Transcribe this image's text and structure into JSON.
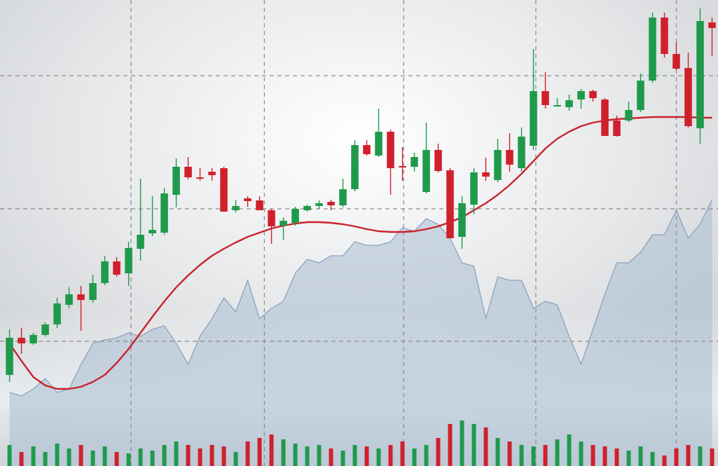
{
  "chart_data": {
    "type": "candlestick",
    "x": [
      0,
      1,
      2,
      3,
      4,
      5,
      6,
      7,
      8,
      9,
      10,
      11,
      12,
      13,
      14,
      15,
      16,
      17,
      18,
      19,
      20,
      21,
      22,
      23,
      24,
      25,
      26,
      27,
      28,
      29,
      30,
      31,
      32,
      33,
      34,
      35,
      36,
      37,
      38,
      39,
      40,
      41,
      42,
      43,
      44,
      45,
      46,
      47,
      48,
      49,
      50,
      51,
      52,
      53,
      54,
      55,
      56,
      57,
      58,
      59
    ],
    "open": [
      130,
      183,
      175,
      187,
      202,
      230,
      245,
      237,
      261,
      292,
      275,
      310,
      332,
      333,
      387,
      427,
      412,
      420,
      425,
      365,
      382,
      379,
      365,
      343,
      347,
      365,
      371,
      377,
      372,
      395,
      458,
      443,
      477,
      428,
      427,
      391,
      451,
      422,
      327,
      373,
      419,
      408,
      451,
      425,
      457,
      535,
      515,
      512,
      523,
      535,
      523,
      493,
      493,
      508,
      550,
      640,
      588,
      568,
      482,
      633
    ],
    "high": [
      195,
      197,
      190,
      205,
      240,
      255,
      257,
      273,
      300,
      298,
      320,
      410,
      385,
      397,
      439,
      441,
      425,
      425,
      427,
      380,
      385,
      385,
      367,
      355,
      370,
      373,
      379,
      380,
      410,
      465,
      465,
      510,
      480,
      455,
      447,
      490,
      460,
      425,
      385,
      425,
      440,
      467,
      475,
      483,
      595,
      562,
      525,
      530,
      538,
      537,
      525,
      500,
      520,
      560,
      647,
      647,
      605,
      590,
      653,
      640
    ],
    "low": [
      120,
      160,
      173,
      185,
      197,
      225,
      193,
      233,
      258,
      270,
      257,
      293,
      328,
      330,
      369,
      409,
      407,
      407,
      363,
      362,
      370,
      365,
      317,
      323,
      343,
      363,
      367,
      365,
      369,
      392,
      443,
      441,
      387,
      407,
      420,
      389,
      419,
      325,
      310,
      359,
      407,
      405,
      420,
      420,
      451,
      510,
      513,
      507,
      510,
      520,
      471,
      470,
      491,
      505,
      547,
      583,
      565,
      483,
      460,
      585
    ],
    "close": [
      183,
      175,
      187,
      202,
      232,
      245,
      237,
      261,
      292,
      273,
      311,
      330,
      337,
      389,
      427,
      412,
      410,
      415,
      363,
      371,
      378,
      365,
      342,
      350,
      367,
      371,
      375,
      372,
      395,
      458,
      445,
      477,
      425,
      427,
      441,
      451,
      421,
      325,
      375,
      419,
      413,
      451,
      430,
      470,
      535,
      515,
      515,
      522,
      535,
      525,
      471,
      471,
      508,
      550,
      640,
      588,
      567,
      485,
      635,
      625
    ],
    "up_color": "#1f9a4b",
    "down_color": "#d0202c",
    "moving_average": {
      "color": "#c8232c",
      "values": [
        175,
        150,
        127,
        115,
        110,
        110,
        113,
        120,
        130,
        147,
        167,
        190,
        213,
        235,
        255,
        272,
        287,
        300,
        310,
        319,
        327,
        333,
        339,
        343,
        346,
        348,
        348,
        347,
        345,
        342,
        338,
        335,
        334,
        334,
        335,
        338,
        342,
        348,
        355,
        365,
        375,
        387,
        401,
        417,
        435,
        453,
        467,
        477,
        485,
        490,
        493,
        495,
        496,
        497,
        498,
        498,
        498,
        498,
        497,
        497
      ]
    },
    "area": {
      "color": "#8aa3bf",
      "fill": "#a9bdd2",
      "values": [
        105,
        100,
        110,
        125,
        105,
        110,
        145,
        175,
        180,
        183,
        190,
        185,
        195,
        200,
        175,
        145,
        185,
        210,
        240,
        220,
        265,
        210,
        225,
        235,
        275,
        295,
        290,
        300,
        300,
        320,
        315,
        315,
        320,
        340,
        335,
        353,
        345,
        325,
        290,
        285,
        210,
        270,
        265,
        265,
        225,
        235,
        230,
        185,
        145,
        195,
        245,
        290,
        290,
        305,
        330,
        330,
        365,
        325,
        345,
        380
      ]
    },
    "volume": {
      "axis": "y2",
      "values": [
        30,
        20,
        28,
        20,
        32,
        25,
        30,
        22,
        28,
        20,
        18,
        25,
        22,
        30,
        35,
        30,
        25,
        30,
        28,
        20,
        35,
        40,
        45,
        38,
        32,
        28,
        30,
        25,
        22,
        30,
        28,
        25,
        30,
        35,
        25,
        30,
        40,
        60,
        65,
        60,
        55,
        40,
        35,
        30,
        28,
        30,
        38,
        45,
        35,
        30,
        28,
        25,
        22,
        28,
        20,
        15,
        25,
        30,
        28,
        25
      ]
    },
    "xlim": [
      -0.8,
      59.5
    ],
    "ylim": [
      0,
      665
    ],
    "y2lim": [
      0,
      665
    ],
    "xticks": [
      10.2,
      21.4,
      33.1,
      44.2,
      56
    ],
    "yticks": [
      178,
      367,
      557
    ],
    "grid": true,
    "grid_color": "#8a8a8a"
  }
}
